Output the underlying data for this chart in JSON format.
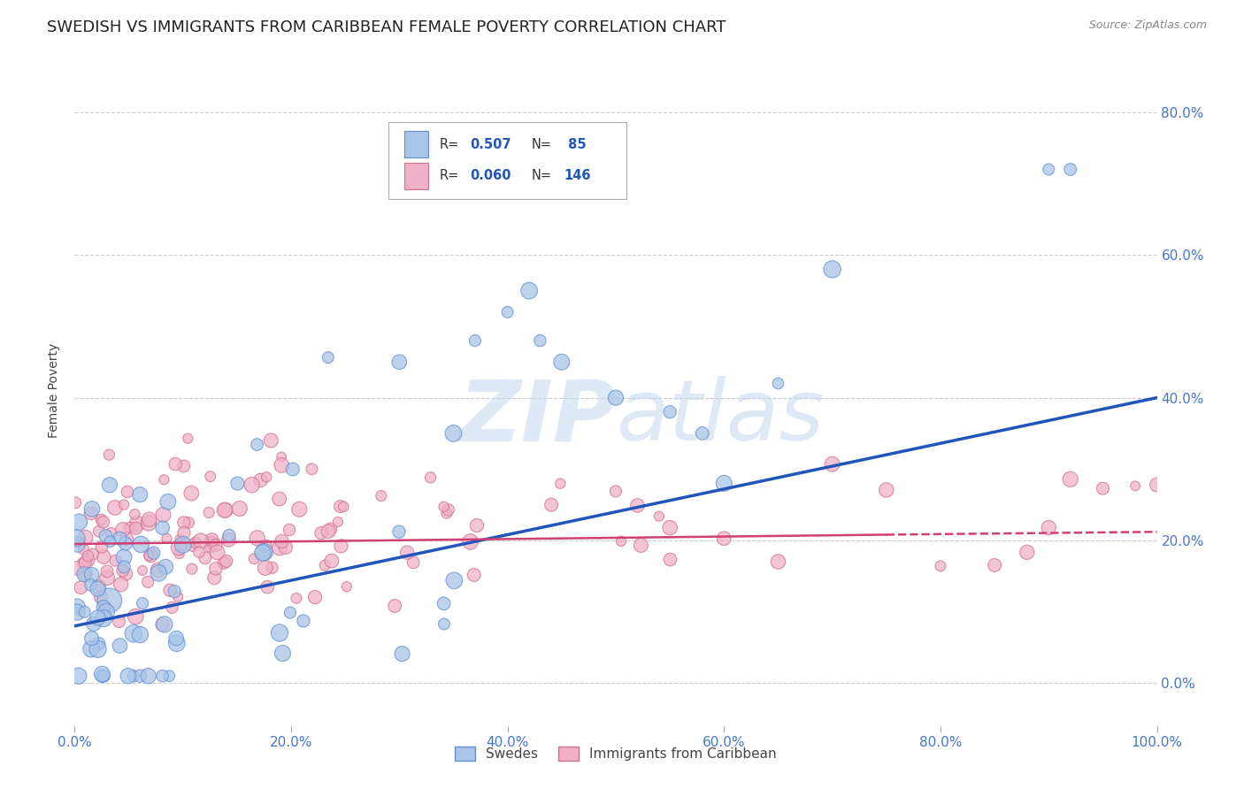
{
  "title": "SWEDISH VS IMMIGRANTS FROM CARIBBEAN FEMALE POVERTY CORRELATION CHART",
  "source": "Source: ZipAtlas.com",
  "ylabel": "Female Poverty",
  "watermark": "ZIPatlas",
  "series1": {
    "label": "Swedes",
    "R": 0.507,
    "N": 85,
    "color": "#a8c4e8",
    "edge_color": "#6090d0",
    "line_color": "#2255bb"
  },
  "series2": {
    "label": "Immigrants from Caribbean",
    "R": 0.06,
    "N": 146,
    "color": "#f0b0c8",
    "edge_color": "#d07090",
    "line_color": "#d04070"
  },
  "xlim": [
    0,
    1
  ],
  "ylim": [
    -0.06,
    0.88
  ],
  "xticks": [
    0.0,
    0.2,
    0.4,
    0.6,
    0.8,
    1.0
  ],
  "yticks": [
    0.0,
    0.2,
    0.4,
    0.6,
    0.8
  ],
  "background_color": "#ffffff",
  "grid_color": "#cccccc",
  "title_fontsize": 13,
  "axis_label_fontsize": 10,
  "tick_fontsize": 11,
  "right_tick_color": "#4477cc",
  "legend_R_color": "#2255bb",
  "legend_N_color": "#2255bb"
}
